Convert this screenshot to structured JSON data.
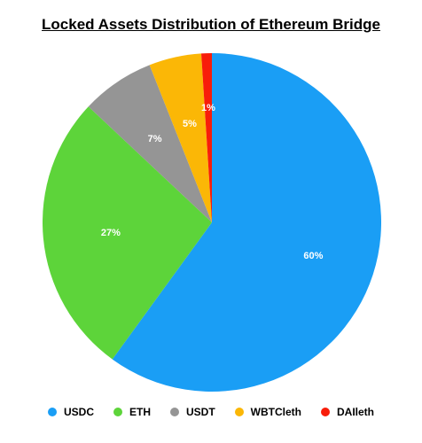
{
  "chart_data": {
    "type": "pie",
    "title": "Locked Assets Distribution of Ethereum Bridge",
    "categories": [
      "USDC",
      "ETH",
      "USDT",
      "WBTCleth",
      "DAIleth"
    ],
    "values": [
      60,
      27,
      7,
      5,
      1
    ],
    "labels": [
      "60%",
      "27%",
      "7%",
      "5%",
      "1%"
    ],
    "colors": [
      "#1a9ef5",
      "#5dd43a",
      "#959595",
      "#fbb706",
      "#f81d0a"
    ],
    "legend_position": "bottom",
    "start_angle": "12 o'clock, clockwise"
  }
}
